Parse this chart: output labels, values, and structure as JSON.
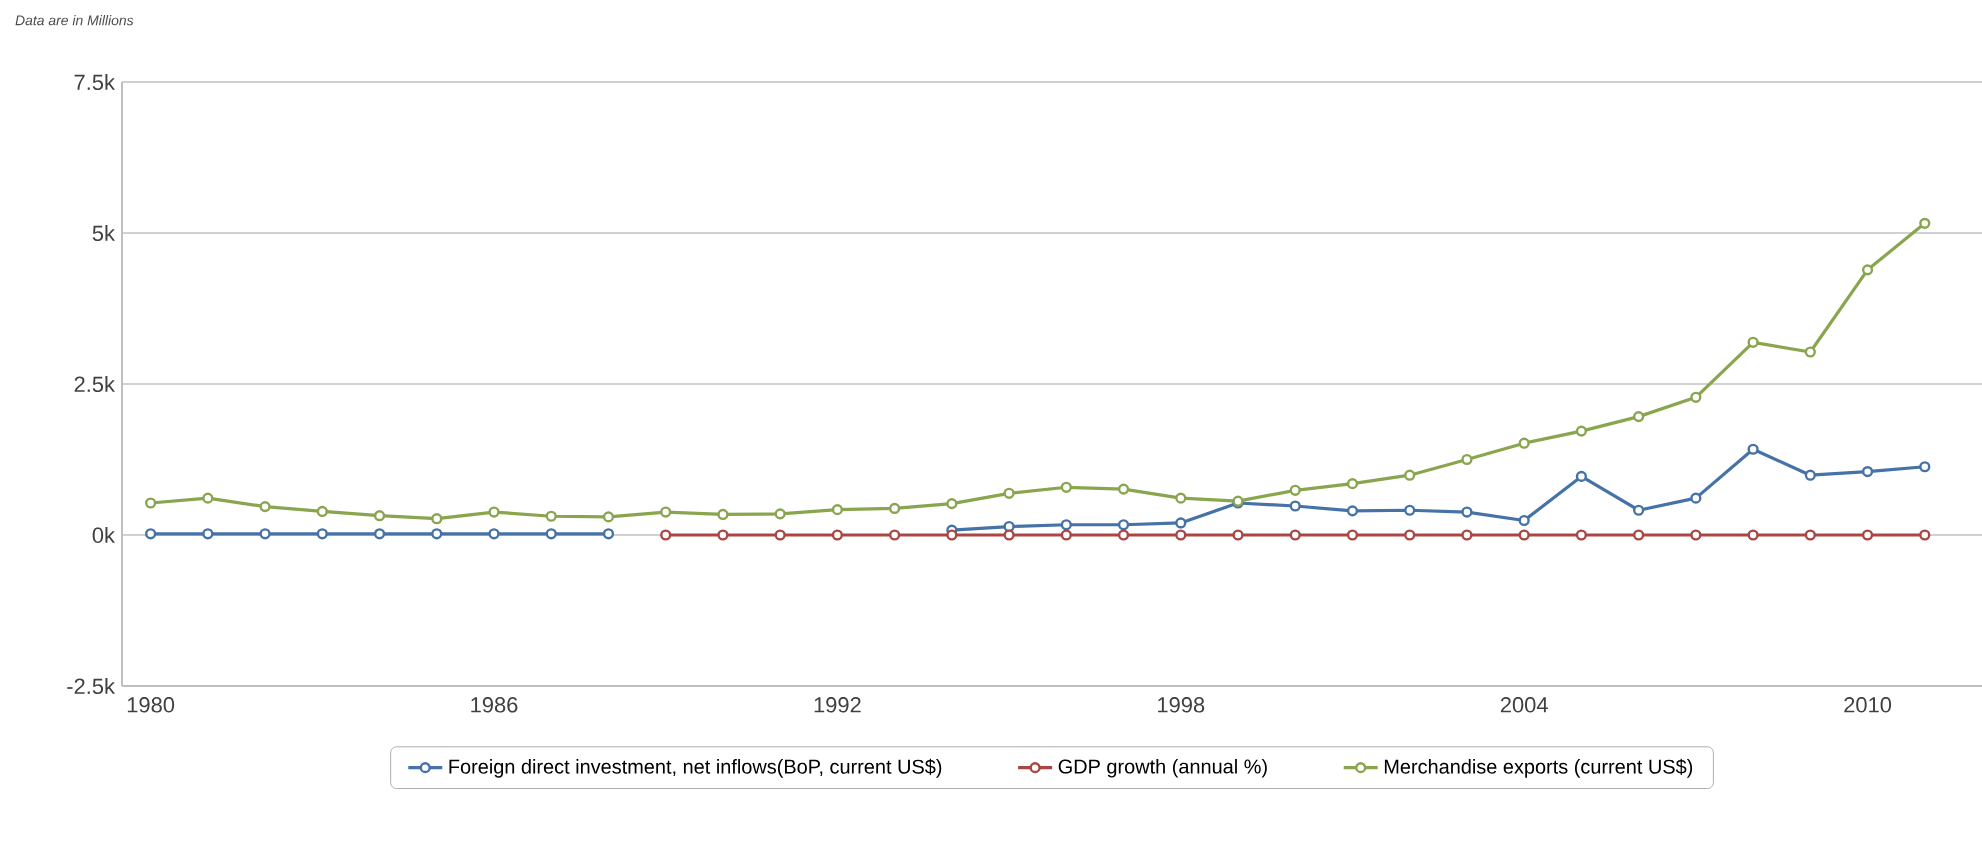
{
  "chart_data": {
    "type": "line",
    "annotations": [
      "Data are in Millions"
    ],
    "x": [
      1980,
      1981,
      1982,
      1983,
      1984,
      1985,
      1986,
      1987,
      1988,
      1989,
      1990,
      1991,
      1992,
      1993,
      1994,
      1995,
      1996,
      1997,
      1998,
      1999,
      2000,
      2001,
      2002,
      2003,
      2004,
      2005,
      2006,
      2007,
      2008,
      2009,
      2010,
      2011
    ],
    "series": [
      {
        "name": "Foreign direct investment, net inflows(BoP, current US$)",
        "color": "#4572a7",
        "values": [
          20,
          20,
          20,
          20,
          20,
          20,
          20,
          20,
          20,
          null,
          null,
          null,
          null,
          null,
          80,
          140,
          170,
          170,
          200,
          530,
          480,
          400,
          410,
          380,
          240,
          970,
          410,
          610,
          1420,
          990,
          1050,
          1130
        ]
      },
      {
        "name": "GDP growth (annual %)",
        "color": "#aa4643",
        "values": [
          null,
          null,
          null,
          null,
          null,
          null,
          null,
          null,
          null,
          0,
          0,
          0,
          0,
          0,
          0,
          0,
          0,
          0,
          0,
          0,
          0,
          0,
          0,
          0,
          0,
          0,
          0,
          0,
          0,
          0,
          0,
          0
        ]
      },
      {
        "name": "Merchandise exports (current US$)",
        "color": "#89a54e",
        "values": [
          530,
          610,
          470,
          390,
          320,
          270,
          380,
          310,
          300,
          380,
          340,
          350,
          420,
          440,
          520,
          690,
          790,
          760,
          610,
          560,
          740,
          850,
          990,
          1250,
          1520,
          1720,
          1960,
          2280,
          3190,
          3030,
          4390,
          5160
        ]
      }
    ],
    "xlim": [
      1979.5,
      2012
    ],
    "ylim": [
      -2500,
      7500
    ],
    "xticks": [
      1980,
      1986,
      1992,
      1998,
      2004,
      2010
    ],
    "yticks": [
      {
        "value": -2500,
        "label": "-2.5k"
      },
      {
        "value": 0,
        "label": "0k"
      },
      {
        "value": 2500,
        "label": "2.5k"
      },
      {
        "value": 5000,
        "label": "5k"
      },
      {
        "value": 7500,
        "label": "7.5k"
      }
    ],
    "grid": "y",
    "legend": "bottom",
    "marker": "circle",
    "line_style": "solid"
  }
}
